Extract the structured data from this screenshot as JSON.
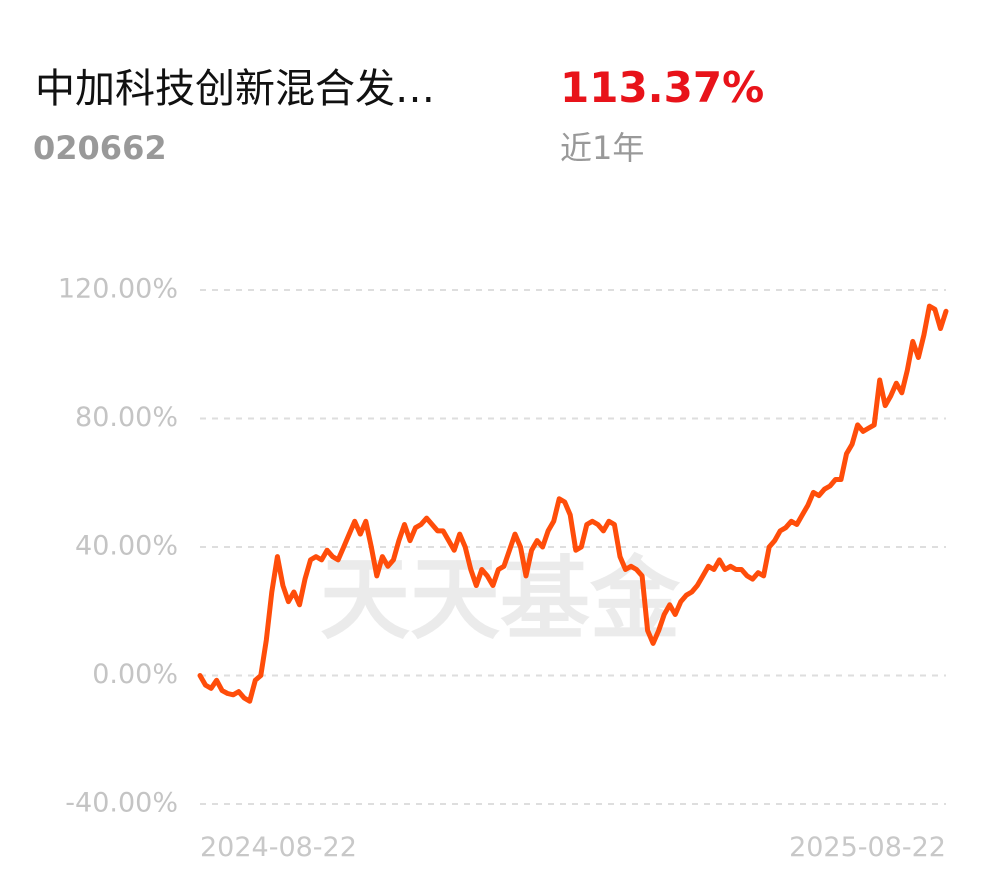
{
  "header": {
    "fund_name": "中加科技创新混合发…",
    "fund_code": "020662",
    "return": "113.37%",
    "period": "近1年"
  },
  "chart_data": {
    "type": "line",
    "watermark": "天天基金",
    "categories": [
      "2024-08-22",
      null,
      null,
      null,
      null,
      null,
      null,
      null,
      null,
      null,
      null,
      null,
      null,
      null,
      null,
      null,
      null,
      null,
      null,
      null,
      null,
      null,
      null,
      null,
      null,
      null,
      null,
      null,
      null,
      null,
      null,
      null,
      null,
      null,
      null,
      null,
      null,
      null,
      null,
      null,
      null,
      null,
      null,
      null,
      null,
      null,
      null,
      null,
      null,
      null,
      null,
      null,
      null,
      null,
      null,
      null,
      null,
      null,
      null,
      null,
      null,
      null,
      null,
      null,
      null,
      null,
      null,
      null,
      null,
      null,
      null,
      null,
      null,
      null,
      null,
      null,
      null,
      null,
      null,
      null,
      null,
      null,
      null,
      null,
      null,
      null,
      null,
      null,
      null,
      null,
      null,
      null,
      null,
      null,
      null,
      null,
      null,
      null,
      null,
      null,
      null,
      null,
      null,
      null,
      null,
      null,
      null,
      null,
      null,
      null,
      null,
      null,
      null,
      null,
      null,
      null,
      null,
      null,
      null,
      null,
      null,
      null,
      null,
      null,
      null,
      null,
      null,
      null,
      null,
      null,
      null,
      null,
      null,
      null,
      null,
      "2025-08-22"
    ],
    "series": [
      {
        "color": "#ff4d0a",
        "values": [
          0,
          -3,
          -4,
          -1.5,
          -4.7,
          -5.6,
          -6,
          -5,
          -7,
          -8,
          -1.5,
          0,
          11,
          26,
          37,
          28,
          23,
          26,
          22,
          30,
          36,
          37,
          36,
          39,
          37,
          36,
          40,
          44,
          48,
          44,
          48,
          40,
          31,
          37,
          34,
          36,
          42,
          47,
          42,
          46,
          47,
          49,
          47,
          45,
          45,
          42,
          39,
          44,
          40,
          33,
          28,
          33,
          31,
          28,
          33,
          34,
          39,
          44,
          40,
          31,
          39,
          42,
          40,
          45,
          48,
          55,
          54,
          50,
          39,
          40,
          47,
          48,
          47,
          45,
          48,
          47,
          37,
          33,
          34,
          33,
          31,
          14,
          10,
          14,
          19,
          22,
          19,
          23,
          25,
          26,
          28,
          31,
          34,
          33,
          36,
          33,
          34,
          33,
          33,
          31,
          30,
          32,
          31,
          40,
          42,
          45,
          46,
          48,
          47,
          50,
          53,
          57,
          56,
          58,
          59,
          61,
          61,
          69,
          72,
          78,
          76,
          77,
          78,
          92,
          84,
          87,
          91,
          88,
          95,
          104,
          99,
          106,
          115,
          114,
          108,
          113.37
        ]
      }
    ],
    "ylim": [
      -40,
      120
    ],
    "yticks": [
      {
        "value": -40,
        "label": "-40.00%"
      },
      {
        "value": 0,
        "label": "0.00%"
      },
      {
        "value": 40,
        "label": "40.00%"
      },
      {
        "value": 80,
        "label": "80.00%"
      },
      {
        "value": 120,
        "label": "120.00%"
      }
    ],
    "grid": true
  }
}
